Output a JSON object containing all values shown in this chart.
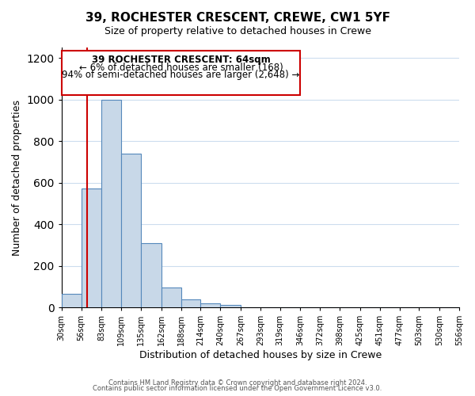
{
  "title": "39, ROCHESTER CRESCENT, CREWE, CW1 5YF",
  "subtitle": "Size of property relative to detached houses in Crewe",
  "xlabel": "Distribution of detached houses by size in Crewe",
  "ylabel": "Number of detached properties",
  "bar_color": "#c8d8e8",
  "bar_edge_color": "#5588bb",
  "bin_edges": [
    30,
    56,
    83,
    109,
    135,
    162,
    188,
    214,
    240,
    267,
    293,
    319,
    346,
    372,
    398,
    425,
    451,
    477,
    503,
    530,
    556
  ],
  "bar_heights": [
    65,
    570,
    1000,
    740,
    310,
    95,
    38,
    20,
    10,
    0,
    0,
    0,
    0,
    0,
    0,
    0,
    0,
    0,
    0,
    0
  ],
  "red_line_x": 64,
  "annotation_title": "39 ROCHESTER CRESCENT: 64sqm",
  "annotation_line1": "← 6% of detached houses are smaller (168)",
  "annotation_line2": "94% of semi-detached houses are larger (2,648) →",
  "annotation_box_color": "#ffffff",
  "annotation_box_edge_color": "#cc0000",
  "red_line_color": "#cc0000",
  "ylim": [
    0,
    1250
  ],
  "yticks": [
    0,
    200,
    400,
    600,
    800,
    1000,
    1200
  ],
  "tick_labels": [
    "30sqm",
    "56sqm",
    "83sqm",
    "109sqm",
    "135sqm",
    "162sqm",
    "188sqm",
    "214sqm",
    "240sqm",
    "267sqm",
    "293sqm",
    "319sqm",
    "346sqm",
    "372sqm",
    "398sqm",
    "425sqm",
    "451sqm",
    "477sqm",
    "503sqm",
    "530sqm",
    "556sqm"
  ],
  "footer1": "Contains HM Land Registry data © Crown copyright and database right 2024.",
  "footer2": "Contains public sector information licensed under the Open Government Licence v3.0.",
  "background_color": "#ffffff",
  "grid_color": "#ccddee"
}
